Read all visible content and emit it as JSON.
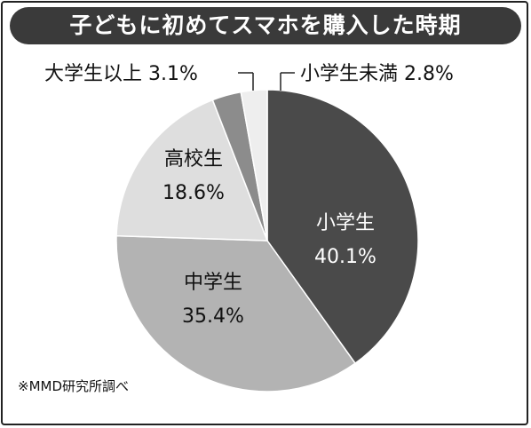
{
  "chart_data": {
    "type": "pie",
    "title": "子どもに初めてスマホを購入した時期",
    "slices": [
      {
        "label": "小学生",
        "value": 40.1,
        "value_label": "40.1%",
        "color": "#4a4a4a",
        "text_color": "#ffffff",
        "label_position": "inside"
      },
      {
        "label": "中学生",
        "value": 35.4,
        "value_label": "35.4%",
        "color": "#b3b3b3",
        "text_color": "#111111",
        "label_position": "inside"
      },
      {
        "label": "高校生",
        "value": 18.6,
        "value_label": "18.6%",
        "color": "#dedede",
        "text_color": "#111111",
        "label_position": "inside"
      },
      {
        "label": "大学生以上",
        "value": 3.1,
        "value_label": "3.1%",
        "color": "#8c8c8c",
        "text_color": "#111111",
        "label_position": "outside"
      },
      {
        "label": "小学生未満",
        "value": 2.8,
        "value_label": "2.8%",
        "color": "#eeeeee",
        "text_color": "#111111",
        "label_position": "outside"
      }
    ],
    "order": "clockwise from top, starting with 小学生",
    "source": "※MMD研究所調べ"
  }
}
